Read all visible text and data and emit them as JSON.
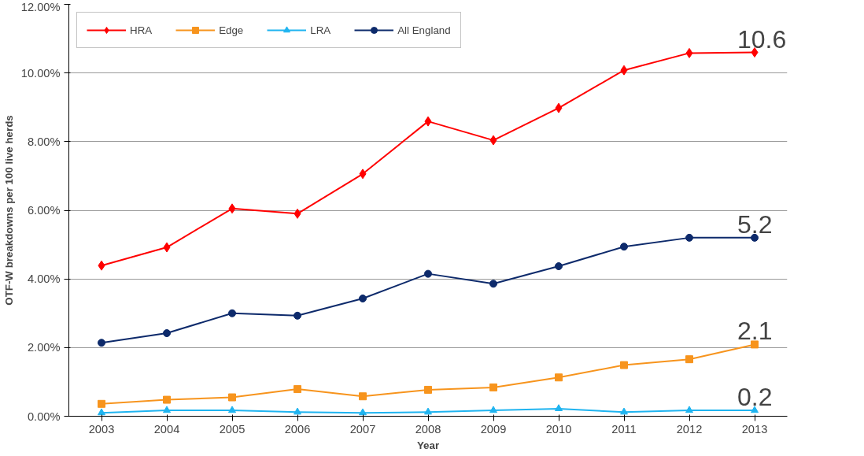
{
  "chart_data": {
    "type": "line",
    "xlabel": "Year",
    "ylabel": "OTF-W breakdowns per 100 live herds",
    "categories": [
      "2003",
      "2004",
      "2005",
      "2006",
      "2007",
      "2008",
      "2009",
      "2010",
      "2011",
      "2012",
      "2013"
    ],
    "series": [
      {
        "name": "HRA",
        "color": "#ff0000",
        "marker": "diamond",
        "values": [
          4.39,
          4.92,
          6.05,
          5.9,
          7.06,
          8.59,
          8.04,
          8.98,
          10.08,
          10.58,
          10.6
        ]
      },
      {
        "name": "Edge",
        "color": "#f7941d",
        "marker": "square",
        "values": [
          0.36,
          0.48,
          0.55,
          0.79,
          0.58,
          0.77,
          0.84,
          1.13,
          1.49,
          1.66,
          2.09
        ]
      },
      {
        "name": "LRA",
        "color": "#1fb4f0",
        "marker": "triangle",
        "values": [
          0.1,
          0.17,
          0.17,
          0.12,
          0.1,
          0.12,
          0.17,
          0.22,
          0.12,
          0.17,
          0.17
        ]
      },
      {
        "name": "All England",
        "color": "#0d2a6b",
        "marker": "circle",
        "values": [
          2.14,
          2.42,
          3.0,
          2.93,
          3.43,
          4.15,
          3.86,
          4.37,
          4.94,
          5.2,
          5.2
        ]
      }
    ],
    "ylim": [
      0,
      12
    ],
    "yticks": [
      {
        "value": 0,
        "label": "0.00%"
      },
      {
        "value": 2,
        "label": "2.00%"
      },
      {
        "value": 4,
        "label": "4.00%"
      },
      {
        "value": 6,
        "label": "6.00%"
      },
      {
        "value": 8,
        "label": "8.00%"
      },
      {
        "value": 10,
        "label": "10.00%"
      },
      {
        "value": 12,
        "label": "12.00%"
      }
    ],
    "annotations": [
      {
        "text": "10.6",
        "x": "2013",
        "y": 10.6
      },
      {
        "text": "5.2",
        "x": "2013",
        "y": 5.2
      },
      {
        "text": "2.1",
        "x": "2013",
        "y": 2.09
      },
      {
        "text": "0.2",
        "x": "2013",
        "y": 0.17
      }
    ],
    "grid": "y",
    "legend": "top left",
    "line_style": "solid"
  }
}
